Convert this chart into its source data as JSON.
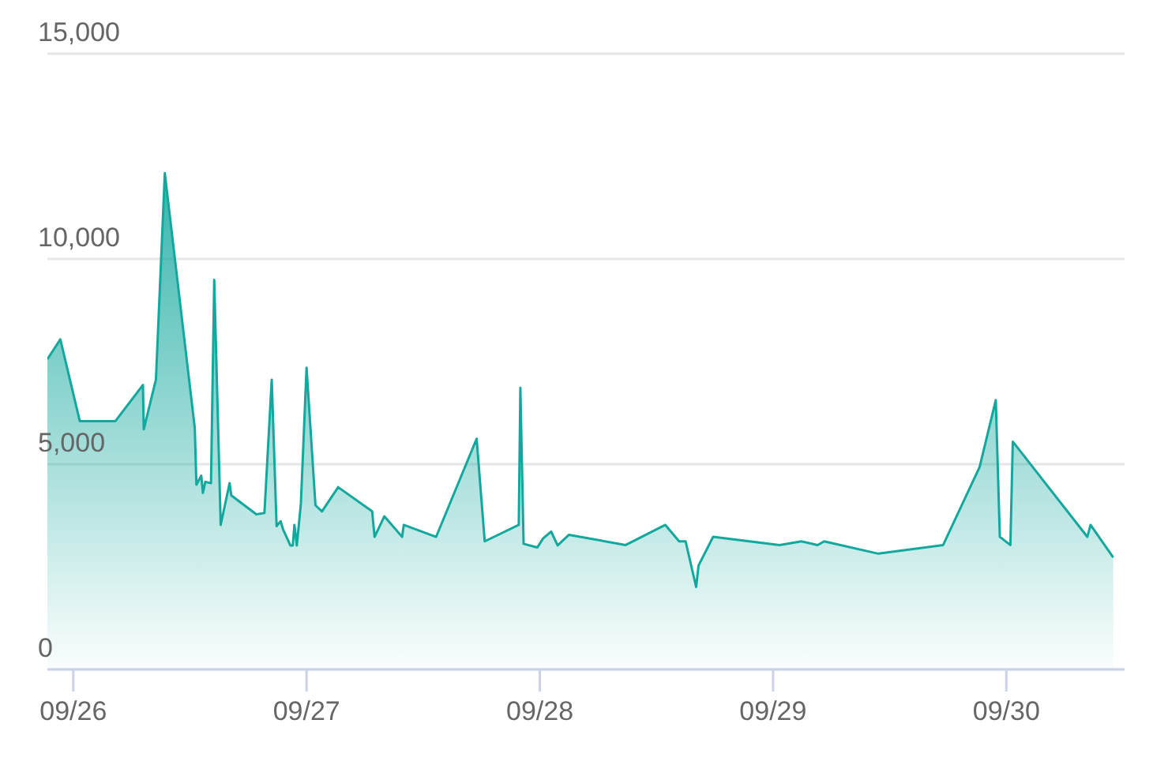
{
  "chart_data": {
    "type": "area",
    "x": [
      "--09-25T21:20",
      "--09-25T22:40",
      "--09-26T00:40",
      "--09-26T04:20",
      "--09-26T07:10",
      "--09-26T07:15",
      "--09-26T08:30",
      "--09-26T09:25",
      "--09-26T12:30",
      "--09-26T12:40",
      "--09-26T13:10",
      "--09-26T13:20",
      "--09-26T13:35",
      "--09-26T14:10",
      "--09-26T14:30",
      "--09-26T15:10",
      "--09-26T16:05",
      "--09-26T16:15",
      "--09-26T18:50",
      "--09-26T19:40",
      "--09-26T20:25",
      "--09-26T20:55",
      "--09-26T21:20",
      "--09-26T21:35",
      "--09-26T22:20",
      "--09-26T22:35",
      "--09-26T22:45",
      "--09-26T23:00",
      "--09-26T23:25",
      "--09-27T00:00",
      "--09-27T00:55",
      "--09-27T01:35",
      "--09-27T03:15",
      "--09-27T06:45",
      "--09-27T07:00",
      "--09-27T08:00",
      "--09-27T09:50",
      "--09-27T10:00",
      "--09-27T13:20",
      "--09-27T17:30",
      "--09-27T18:20",
      "--09-27T21:50",
      "--09-27T22:00",
      "--09-27T22:20",
      "--09-27T23:45",
      "--09-28T00:20",
      "--09-28T01:10",
      "--09-28T01:50",
      "--09-28T03:00",
      "--09-28T08:50",
      "--09-28T12:55",
      "--09-28T14:20",
      "--09-28T15:00",
      "--09-28T16:05",
      "--09-28T16:20",
      "--09-28T17:50",
      "--09-29T00:40",
      "--09-29T02:55",
      "--09-29T04:35",
      "--09-29T05:15",
      "--09-29T10:50",
      "--09-29T17:30",
      "--09-29T21:15",
      "--09-29T22:55",
      "--09-29T23:20",
      "--09-30T00:25",
      "--09-30T00:40",
      "--09-30T08:20",
      "--09-30T08:40",
      "--09-30T11:00"
    ],
    "series": [
      {
        "color": "#13a89e",
        "values": [
          7560,
          8040,
          6050,
          6050,
          6930,
          5850,
          7060,
          12090,
          5880,
          4500,
          4720,
          4300,
          4570,
          4540,
          9490,
          3520,
          4540,
          4240,
          3780,
          3810,
          7060,
          3490,
          3610,
          3410,
          3020,
          3020,
          3520,
          3020,
          4040,
          7350,
          4000,
          3850,
          4440,
          3850,
          3230,
          3730,
          3230,
          3520,
          3230,
          5620,
          3120,
          3520,
          6860,
          3060,
          2970,
          3190,
          3360,
          3020,
          3280,
          3030,
          3520,
          3120,
          3120,
          2010,
          2530,
          3230,
          3030,
          3120,
          3030,
          3120,
          2820,
          3030,
          4930,
          6560,
          3230,
          3030,
          5550,
          3230,
          3520,
          2730
        ]
      }
    ],
    "xlim": [
      "--09-25T21:20",
      "--09-30T12:10"
    ],
    "xticks": [
      {
        "value": "--09-26",
        "label": "09/26"
      },
      {
        "value": "--09-27",
        "label": "09/27"
      },
      {
        "value": "--09-28",
        "label": "09/28"
      },
      {
        "value": "--09-29",
        "label": "09/29"
      },
      {
        "value": "--09-30",
        "label": "09/30"
      }
    ],
    "ylim": [
      0,
      15000
    ],
    "yticks": [
      0,
      {
        "value": 5000,
        "label": "5,000"
      },
      {
        "value": 10000,
        "label": "10,000"
      },
      {
        "value": 15000,
        "label": "15,000"
      }
    ],
    "grid": "y"
  }
}
